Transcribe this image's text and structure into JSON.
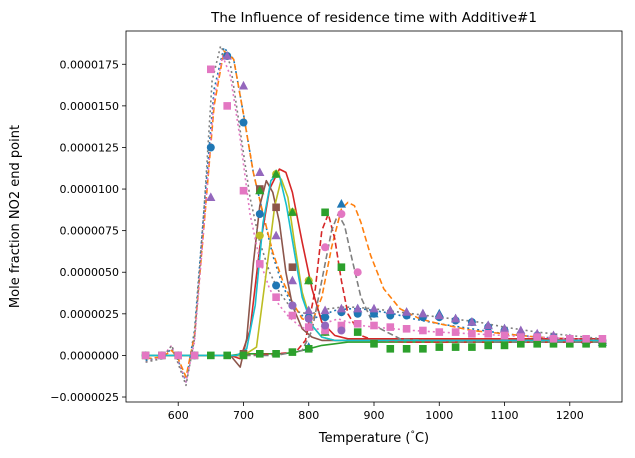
{
  "chart_data": {
    "type": "line",
    "title": "The Influence of residence time with Additive#1",
    "xlabel": "Temperature (°C)",
    "ylabel": "Mole fraction NO2 end point",
    "xlim": [
      520,
      1280
    ],
    "ylim": [
      -2.8e-06,
      1.95e-05
    ],
    "xticks": [
      600,
      700,
      800,
      900,
      1000,
      1100,
      1200
    ],
    "yticks": [
      -2.5e-06,
      0.0,
      2.5e-06,
      5e-06,
      7.5e-06,
      1e-05,
      1.25e-05,
      1.5e-05,
      1.75e-05
    ],
    "ytick_labels": [
      "−0.0000025",
      "0.0000000",
      "0.0000025",
      "0.0000050",
      "0.0000075",
      "0.0000100",
      "0.0000125",
      "0.0000150",
      "0.0000175"
    ],
    "grid": false,
    "legend": "none",
    "lines": [
      {
        "color": "#1f77b4",
        "dash": "dotted",
        "x": [
          550,
          575,
          590,
          600,
          612,
          625,
          640,
          655,
          670,
          685,
          700,
          715,
          730,
          745,
          760,
          775,
          790,
          805,
          820,
          840,
          860,
          880,
          900,
          930,
          960,
          1000,
          1050,
          1100,
          1150,
          1200,
          1250
        ],
        "y": [
          -3e-07,
          -1e-07,
          4e-07,
          -3e-07,
          -1.6e-06,
          1.5e-06,
          9e-06,
          1.6e-05,
          1.85e-05,
          1.78e-05,
          1.45e-05,
          1.1e-05,
          8.5e-06,
          6e-06,
          4.2e-06,
          3e-06,
          2.4e-06,
          2.2e-06,
          2.4e-06,
          2.7e-06,
          2.8e-06,
          2.8e-06,
          2.7e-06,
          2.5e-06,
          2.2e-06,
          1.9e-06,
          1.6e-06,
          1.3e-06,
          1.1e-06,
          1e-06,
          9e-07
        ]
      },
      {
        "color": "#ff7f0e",
        "dash": "dashed",
        "x": [
          550,
          575,
          590,
          600,
          612,
          625,
          640,
          655,
          670,
          685,
          700,
          715,
          730,
          745,
          760,
          775,
          790,
          805,
          820,
          835,
          850,
          860,
          870,
          880,
          895,
          915,
          940,
          970,
          1000,
          1050,
          1100,
          1150,
          1200,
          1250
        ],
        "y": [
          -2e-07,
          -1e-07,
          3e-07,
          -2e-07,
          -1.3e-06,
          1.2e-06,
          8e-06,
          1.5e-05,
          1.83e-05,
          1.78e-05,
          1.45e-05,
          1.1e-05,
          8.5e-06,
          6.2e-06,
          4.5e-06,
          3.2e-06,
          2.2e-06,
          2e-06,
          3.5e-06,
          6.5e-06,
          8.8e-06,
          9.2e-06,
          9e-06,
          8e-06,
          6e-06,
          4e-06,
          2.8e-06,
          2.2e-06,
          1.9e-06,
          1.5e-06,
          1.3e-06,
          1.1e-06,
          1e-06,
          9e-07
        ]
      },
      {
        "color": "#2ca02c",
        "dash": "solid",
        "x": [
          550,
          600,
          650,
          680,
          700,
          720,
          740,
          760,
          780,
          800,
          820,
          840,
          860,
          900,
          950,
          1000,
          1050,
          1100,
          1150,
          1200,
          1250
        ],
        "y": [
          0.0,
          0.0,
          0.0,
          0.0,
          1e-07,
          1e-07,
          1e-07,
          1e-07,
          2e-07,
          4e-07,
          6e-07,
          7e-07,
          8e-07,
          8e-07,
          8e-07,
          8e-07,
          8e-07,
          8e-07,
          8e-07,
          8e-07,
          8e-07
        ]
      },
      {
        "color": "#d62728",
        "dash": "solid",
        "x": [
          550,
          600,
          650,
          680,
          695,
          710,
          725,
          740,
          755,
          765,
          775,
          790,
          805,
          820,
          840,
          860,
          880,
          900,
          950,
          1000,
          1050,
          1100,
          1150,
          1200,
          1250
        ],
        "y": [
          0.0,
          0.0,
          0.0,
          0.0,
          -2e-07,
          1.5e-06,
          6.5e-06,
          1e-05,
          1.12e-05,
          1.1e-05,
          9.8e-06,
          6.8e-06,
          4e-06,
          2e-06,
          1.2e-06,
          1e-06,
          1e-06,
          1e-06,
          1e-06,
          1e-06,
          1e-06,
          1e-06,
          1e-06,
          1e-06,
          1e-06
        ]
      },
      {
        "color": "#d62728",
        "dash": "dashed",
        "x": [
          550,
          650,
          700,
          750,
          780,
          795,
          810,
          820,
          830,
          840,
          850,
          860,
          880,
          900,
          950,
          1000,
          1050,
          1100,
          1150,
          1200,
          1250
        ],
        "y": [
          0.0,
          0.0,
          0.0,
          1e-07,
          2e-07,
          9e-07,
          4e-06,
          7.5e-06,
          8.5e-06,
          7e-06,
          4.5e-06,
          2.5e-06,
          1.2e-06,
          9e-07,
          8e-07,
          8e-07,
          8e-07,
          8e-07,
          8e-07,
          8e-07,
          8e-07
        ]
      },
      {
        "color": "#8c564b",
        "dash": "solid",
        "x": [
          550,
          600,
          650,
          680,
          695,
          705,
          715,
          725,
          735,
          745,
          755,
          765,
          775,
          790,
          805,
          820,
          840,
          860,
          900,
          950,
          1000,
          1050,
          1100,
          1150,
          1200,
          1250
        ],
        "y": [
          0.0,
          0.0,
          0.0,
          0.0,
          -7e-07,
          1e-06,
          5.5e-06,
          9e-06,
          1.05e-05,
          9.8e-06,
          8e-06,
          5e-06,
          3e-06,
          1.6e-06,
          1.1e-06,
          9e-07,
          9e-07,
          9e-07,
          9e-07,
          9e-07,
          9e-07,
          9e-07,
          9e-07,
          9e-07,
          9e-07,
          9e-07
        ]
      },
      {
        "color": "#e377c2",
        "dash": "dotted",
        "x": [
          550,
          575,
          590,
          600,
          612,
          625,
          640,
          655,
          668,
          680,
          695,
          710,
          725,
          740,
          755,
          770,
          785,
          800,
          815,
          830,
          845,
          860,
          880,
          900,
          930,
          960,
          1000,
          1050,
          1100,
          1150,
          1200,
          1250
        ],
        "y": [
          -4e-07,
          -1e-07,
          6e-07,
          -4e-07,
          -1.6e-06,
          8e-07,
          8e-06,
          1.55e-05,
          1.8e-05,
          1.68e-05,
          1.3e-05,
          8.5e-06,
          5.7e-06,
          4e-06,
          3e-06,
          2.3e-06,
          1.8e-06,
          1.5e-06,
          1.6e-06,
          2e-06,
          2.2e-06,
          2e-06,
          1.8e-06,
          1.7e-06,
          1.6e-06,
          1.5e-06,
          1.4e-06,
          1.3e-06,
          1.2e-06,
          1.1e-06,
          1e-06,
          9e-07
        ]
      },
      {
        "color": "#7f7f7f",
        "dash": "dotted",
        "x": [
          550,
          575,
          590,
          600,
          612,
          625,
          640,
          652,
          665,
          680,
          695,
          710,
          725,
          740,
          755,
          770,
          785,
          800,
          815,
          830,
          850,
          870,
          900,
          940,
          980,
          1020,
          1060,
          1100,
          1150,
          1200,
          1250
        ],
        "y": [
          -4e-07,
          -2e-07,
          6e-07,
          -5e-07,
          -1.8e-06,
          1e-06,
          9e-06,
          1.65e-05,
          1.86e-05,
          1.75e-05,
          1.35e-05,
          9.5e-06,
          6.8e-06,
          5e-06,
          3.8e-06,
          3e-06,
          2.6e-06,
          2.5e-06,
          2.6e-06,
          2.8e-06,
          2.9e-06,
          2.9e-06,
          2.8e-06,
          2.6e-06,
          2.4e-06,
          2.2e-06,
          2e-06,
          1.7e-06,
          1.4e-06,
          1.2e-06,
          1e-06
        ]
      },
      {
        "color": "#7f7f7f",
        "dash": "dashed",
        "x": [
          550,
          650,
          700,
          750,
          790,
          805,
          820,
          835,
          845,
          855,
          865,
          880,
          900,
          940,
          980,
          1050,
          1100,
          1150,
          1200,
          1250
        ],
        "y": [
          0.0,
          0.0,
          0.0,
          0.0,
          3e-07,
          1.5e-06,
          4.5e-06,
          7.5e-06,
          8.5e-06,
          7.8e-06,
          6e-06,
          3.5e-06,
          1.8e-06,
          1e-06,
          9e-07,
          8e-07,
          8e-07,
          8e-07,
          8e-07,
          8e-07
        ]
      },
      {
        "color": "#bcbd22",
        "dash": "solid",
        "x": [
          550,
          650,
          700,
          720,
          735,
          748,
          758,
          768,
          778,
          790,
          805,
          820,
          840,
          860,
          900,
          950,
          1000,
          1050,
          1100,
          1150,
          1200,
          1250
        ],
        "y": [
          0.0,
          0.0,
          0.0,
          5e-07,
          5e-06,
          9e-06,
          1.06e-05,
          9.5e-06,
          6.8e-06,
          3.8e-06,
          1.8e-06,
          1.1e-06,
          9e-07,
          9e-07,
          9e-07,
          9e-07,
          9e-07,
          9e-07,
          9e-07,
          9e-07,
          9e-07,
          9e-07
        ]
      },
      {
        "color": "#17becf",
        "dash": "solid",
        "x": [
          550,
          650,
          690,
          705,
          718,
          730,
          742,
          754,
          766,
          778,
          790,
          805,
          820,
          840,
          860,
          900,
          950,
          1000,
          1050,
          1100,
          1150,
          1200,
          1250
        ],
        "y": [
          0.0,
          0.0,
          0.0,
          4e-07,
          3e-06,
          8e-06,
          1.05e-05,
          1.1e-05,
          9e-06,
          6.2e-06,
          3.5e-06,
          1.8e-06,
          1.1e-06,
          9e-07,
          9e-07,
          9e-07,
          9e-07,
          9e-07,
          9e-07,
          9e-07,
          9e-07,
          9e-07,
          9e-07
        ]
      }
    ],
    "marker_series": [
      {
        "color": "#1f77b4",
        "marker": "circle",
        "x": [
          550,
          575,
          600,
          625,
          650,
          675,
          700,
          725,
          750,
          775,
          800,
          825,
          850,
          875,
          900,
          925,
          950,
          975,
          1000,
          1025,
          1050,
          1075,
          1100,
          1125,
          1150,
          1175,
          1200,
          1225,
          1250
        ],
        "y": [
          0.0,
          0.0,
          0.0,
          0.0,
          1.25e-05,
          1.8e-05,
          1.4e-05,
          8.5e-06,
          4.2e-06,
          3e-06,
          2.3e-06,
          2.3e-06,
          2.6e-06,
          2.5e-06,
          2.5e-06,
          2.4e-06,
          2.4e-06,
          2.3e-06,
          2.3e-06,
          2.1e-06,
          2e-06,
          1.7e-06,
          1.5e-06,
          1.3e-06,
          1.2e-06,
          1.1e-06,
          1e-06,
          9e-07,
          9e-07
        ]
      },
      {
        "color": "#1f77b4",
        "marker": "triangle",
        "x": [
          800,
          825,
          850,
          875,
          900,
          925,
          950,
          975,
          1000,
          1025,
          1050,
          1075,
          1100,
          1125,
          1150,
          1175,
          1200,
          1225,
          1250
        ],
        "y": [
          5e-07,
          2.5e-06,
          9.1e-06,
          2.8e-06,
          2.5e-06,
          2.7e-06,
          2.6e-06,
          2.5e-06,
          2.5e-06,
          2.2e-06,
          2e-06,
          1.8e-06,
          1.6e-06,
          1.4e-06,
          1.2e-06,
          1e-06,
          1e-06,
          9e-07,
          8e-07
        ]
      },
      {
        "color": "#9467bd",
        "marker": "triangle",
        "x": [
          650,
          675,
          700,
          725,
          750,
          775,
          800,
          825,
          850,
          875,
          900,
          925,
          950,
          975,
          1000,
          1025,
          1050,
          1075,
          1100,
          1125,
          1150,
          1175,
          1200,
          1225,
          1250
        ],
        "y": [
          9.5e-06,
          1.8e-05,
          1.62e-05,
          1.1e-05,
          7.2e-06,
          4.5e-06,
          2.7e-06,
          2.7e-06,
          2.8e-06,
          2.8e-06,
          2.8e-06,
          2.7e-06,
          2.6e-06,
          2.5e-06,
          2.4e-06,
          2.2e-06,
          2e-06,
          1.8e-06,
          1.6e-06,
          1.5e-06,
          1.3e-06,
          1.2e-06,
          1e-06,
          9e-07,
          9e-07
        ]
      },
      {
        "color": "#8c564b",
        "marker": "square",
        "x": [
          700,
          725,
          750,
          775
        ],
        "y": [
          1e-07,
          1e-05,
          8.9e-06,
          5.3e-06
        ]
      },
      {
        "color": "#bcbd22",
        "marker": "circle",
        "x": [
          725,
          750,
          775,
          800,
          825
        ],
        "y": [
          7.2e-06,
          1.09e-05,
          8.6e-06,
          4.5e-06,
          1.4e-06
        ]
      },
      {
        "color": "#2ca02c",
        "marker": "triangle",
        "x": [
          725,
          750,
          775,
          800,
          825
        ],
        "y": [
          9.9e-06,
          1.09e-05,
          8.6e-06,
          4.5e-06,
          1.4e-06
        ]
      },
      {
        "color": "#2ca02c",
        "marker": "square",
        "x": [
          550,
          575,
          600,
          625,
          650,
          675,
          700,
          725,
          750,
          775,
          800,
          825,
          850,
          875,
          900,
          925,
          950,
          975,
          1000,
          1025,
          1050,
          1075,
          1100,
          1125,
          1150,
          1175,
          1200,
          1225,
          1250
        ],
        "y": [
          0.0,
          0.0,
          0.0,
          0.0,
          0.0,
          0.0,
          0.0,
          1e-07,
          1e-07,
          2e-07,
          4e-07,
          8.6e-06,
          5.3e-06,
          1.4e-06,
          7e-07,
          4e-07,
          4e-07,
          4e-07,
          5e-07,
          5e-07,
          5e-07,
          6e-07,
          6e-07,
          7e-07,
          7e-07,
          7e-07,
          7e-07,
          7e-07,
          7e-07
        ]
      },
      {
        "color": "#e377c2",
        "marker": "square",
        "x": [
          550,
          575,
          600,
          625,
          650,
          675,
          700,
          725,
          750,
          775,
          800,
          825,
          850,
          875,
          900,
          925,
          950,
          975,
          1000,
          1025,
          1050,
          1075,
          1100,
          1125,
          1150,
          1175,
          1200,
          1225,
          1250
        ],
        "y": [
          0.0,
          0.0,
          0.0,
          0.0,
          1.72e-05,
          1.5e-05,
          9.9e-06,
          5.5e-06,
          3.5e-06,
          2.4e-06,
          1.7e-06,
          1.5e-06,
          1.8e-06,
          1.9e-06,
          1.8e-06,
          1.7e-06,
          1.6e-06,
          1.5e-06,
          1.4e-06,
          1.4e-06,
          1.3e-06,
          1.3e-06,
          1.2e-06,
          1.1e-06,
          1.1e-06,
          1e-06,
          1e-06,
          1e-06,
          1e-06
        ]
      },
      {
        "color": "#e377c2",
        "marker": "circle",
        "x": [
          825,
          850,
          875
        ],
        "y": [
          6.5e-06,
          8.5e-06,
          5e-06
        ]
      },
      {
        "color": "#9467bd",
        "marker": "circle",
        "x": [
          775,
          800,
          825,
          850
        ],
        "y": [
          3e-06,
          2.2e-06,
          1.8e-06,
          1.5e-06
        ]
      }
    ]
  }
}
